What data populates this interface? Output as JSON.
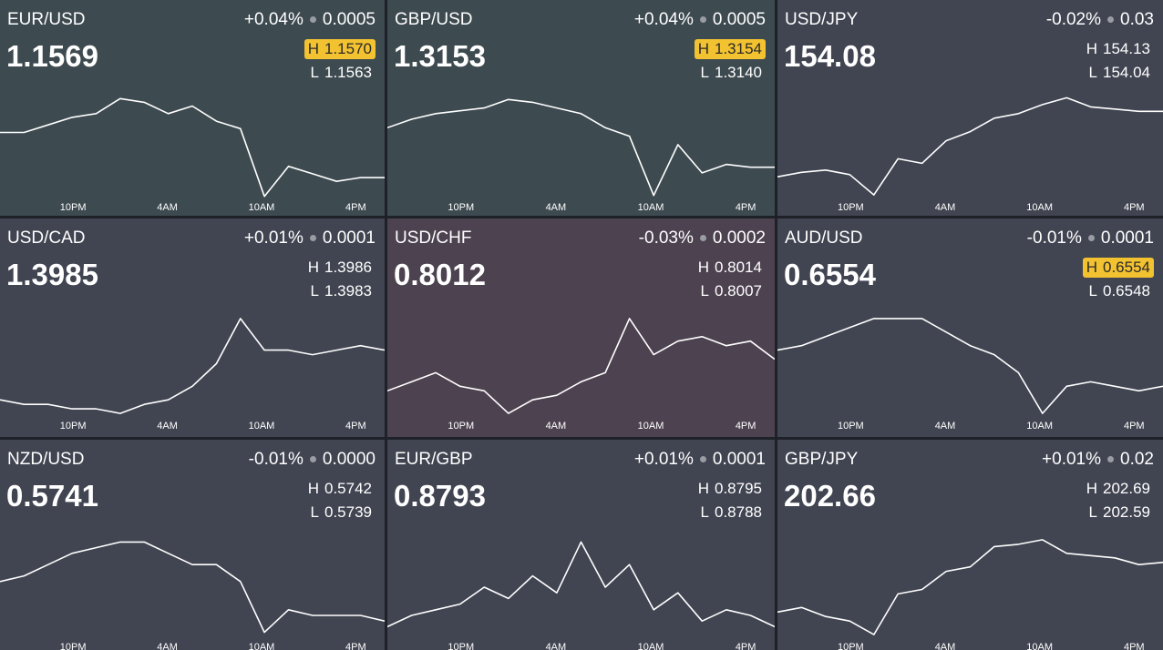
{
  "tiles": [
    {
      "symbol": "EUR/USD",
      "change_pct": "+0.04%",
      "change_abs": "0.0005",
      "price": "1.1569",
      "high_label": "H",
      "high": "1.1570",
      "low_label": "L",
      "low": "1.1563",
      "high_highlight": true,
      "background": "#3d4a50",
      "sparkline": {
        "type": "line",
        "ylim": [
          1.1545,
          1.1575
        ],
        "values": [
          1.1564,
          1.1564,
          1.1566,
          1.1568,
          1.1569,
          1.1573,
          1.1572,
          1.1569,
          1.1571,
          1.1567,
          1.1565,
          1.1547,
          1.1555,
          1.1553,
          1.1551,
          1.1552,
          1.1552
        ],
        "x_labels": [
          "10PM",
          "4AM",
          "10AM",
          "4PM"
        ],
        "color": "#ffffff"
      }
    },
    {
      "symbol": "GBP/USD",
      "change_pct": "+0.04%",
      "change_abs": "0.0005",
      "price": "1.3153",
      "high_label": "H",
      "high": "1.3154",
      "low_label": "L",
      "low": "1.3140",
      "high_highlight": true,
      "background": "#3d4a50",
      "sparkline": {
        "type": "line",
        "ylim": [
          1.312,
          1.316
        ],
        "values": [
          1.3147,
          1.315,
          1.3152,
          1.3153,
          1.3154,
          1.3157,
          1.3156,
          1.3154,
          1.3152,
          1.3147,
          1.3144,
          1.3123,
          1.3141,
          1.3131,
          1.3134,
          1.3133,
          1.3133
        ],
        "x_labels": [
          "10PM",
          "4AM",
          "10AM",
          "4PM"
        ],
        "color": "#ffffff"
      }
    },
    {
      "symbol": "USD/JPY",
      "change_pct": "-0.02%",
      "change_abs": "0.03",
      "price": "154.08",
      "high_label": "H",
      "high": "154.13",
      "low_label": "L",
      "low": "154.04",
      "high_highlight": false,
      "background": "#414451",
      "sparkline": {
        "type": "line",
        "ylim": [
          153.7,
          154.2
        ],
        "values": [
          153.82,
          153.84,
          153.85,
          153.83,
          153.74,
          153.9,
          153.88,
          153.98,
          154.02,
          154.08,
          154.1,
          154.14,
          154.17,
          154.13,
          154.12,
          154.11,
          154.11
        ],
        "x_labels": [
          "10PM",
          "4AM",
          "10AM",
          "4PM"
        ],
        "color": "#ffffff"
      }
    },
    {
      "symbol": "USD/CAD",
      "change_pct": "+0.01%",
      "change_abs": "0.0001",
      "price": "1.3985",
      "high_label": "H",
      "high": "1.3986",
      "low_label": "L",
      "low": "1.3983",
      "high_highlight": false,
      "background": "#414451",
      "sparkline": {
        "type": "line",
        "ylim": [
          1.3965,
          1.399
        ],
        "values": [
          1.397,
          1.3969,
          1.3969,
          1.3968,
          1.3968,
          1.3967,
          1.3969,
          1.397,
          1.3973,
          1.3978,
          1.3988,
          1.3981,
          1.3981,
          1.398,
          1.3981,
          1.3982,
          1.3981
        ],
        "x_labels": [
          "10PM",
          "4AM",
          "10AM",
          "4PM"
        ],
        "color": "#ffffff"
      }
    },
    {
      "symbol": "USD/CHF",
      "change_pct": "-0.03%",
      "change_abs": "0.0002",
      "price": "0.8012",
      "high_label": "H",
      "high": "0.8014",
      "low_label": "L",
      "low": "0.8007",
      "high_highlight": false,
      "background": "#4d4250",
      "sparkline": {
        "type": "line",
        "ylim": [
          0.7995,
          0.802
        ],
        "values": [
          0.8002,
          0.8004,
          0.8006,
          0.8003,
          0.8002,
          0.7997,
          0.8,
          0.8001,
          0.8004,
          0.8006,
          0.8018,
          0.801,
          0.8013,
          0.8014,
          0.8012,
          0.8013,
          0.8009
        ],
        "x_labels": [
          "10PM",
          "4AM",
          "10AM",
          "4PM"
        ],
        "color": "#ffffff"
      }
    },
    {
      "symbol": "AUD/USD",
      "change_pct": "-0.01%",
      "change_abs": "0.0001",
      "price": "0.6554",
      "high_label": "H",
      "high": "0.6554",
      "low_label": "L",
      "low": "0.6548",
      "high_highlight": true,
      "background": "#414451",
      "sparkline": {
        "type": "line",
        "ylim": [
          0.6535,
          0.656
        ],
        "values": [
          0.6551,
          0.6552,
          0.6554,
          0.6556,
          0.6558,
          0.6558,
          0.6558,
          0.6555,
          0.6552,
          0.655,
          0.6546,
          0.6537,
          0.6543,
          0.6544,
          0.6543,
          0.6542,
          0.6543
        ],
        "x_labels": [
          "10PM",
          "4AM",
          "10AM",
          "4PM"
        ],
        "color": "#ffffff"
      }
    },
    {
      "symbol": "NZD/USD",
      "change_pct": "-0.01%",
      "change_abs": "0.0000",
      "price": "0.5741",
      "high_label": "H",
      "high": "0.5742",
      "low_label": "L",
      "low": "0.5739",
      "high_highlight": false,
      "background": "#414451",
      "sparkline": {
        "type": "line",
        "ylim": [
          0.5725,
          0.5745
        ],
        "values": [
          0.5736,
          0.5737,
          0.5739,
          0.5741,
          0.5742,
          0.5743,
          0.5743,
          0.5741,
          0.5739,
          0.5739,
          0.5736,
          0.5727,
          0.5731,
          0.573,
          0.573,
          0.573,
          0.5729
        ],
        "x_labels": [
          "10PM",
          "4AM",
          "10AM",
          "4PM"
        ],
        "color": "#ffffff"
      }
    },
    {
      "symbol": "EUR/GBP",
      "change_pct": "+0.01%",
      "change_abs": "0.0001",
      "price": "0.8793",
      "high_label": "H",
      "high": "0.8795",
      "low_label": "L",
      "low": "0.8788",
      "high_highlight": false,
      "background": "#414451",
      "sparkline": {
        "type": "line",
        "ylim": [
          0.878,
          0.88
        ],
        "values": [
          0.8783,
          0.8785,
          0.8786,
          0.8787,
          0.879,
          0.8788,
          0.8792,
          0.8789,
          0.8798,
          0.879,
          0.8794,
          0.8786,
          0.8789,
          0.8784,
          0.8786,
          0.8785,
          0.8783
        ],
        "x_labels": [
          "10PM",
          "4AM",
          "10AM",
          "4PM"
        ],
        "color": "#ffffff"
      }
    },
    {
      "symbol": "GBP/JPY",
      "change_pct": "+0.01%",
      "change_abs": "0.02",
      "price": "202.66",
      "high_label": "H",
      "high": "202.69",
      "low_label": "L",
      "low": "202.59",
      "high_highlight": false,
      "background": "#414451",
      "sparkline": {
        "type": "line",
        "ylim": [
          201.8,
          202.8
        ],
        "values": [
          202.08,
          202.12,
          202.04,
          202.0,
          201.88,
          202.24,
          202.28,
          202.44,
          202.48,
          202.66,
          202.68,
          202.72,
          202.6,
          202.58,
          202.56,
          202.5,
          202.52
        ],
        "x_labels": [
          "10PM",
          "4AM",
          "10AM",
          "4PM"
        ],
        "color": "#ffffff"
      }
    }
  ]
}
